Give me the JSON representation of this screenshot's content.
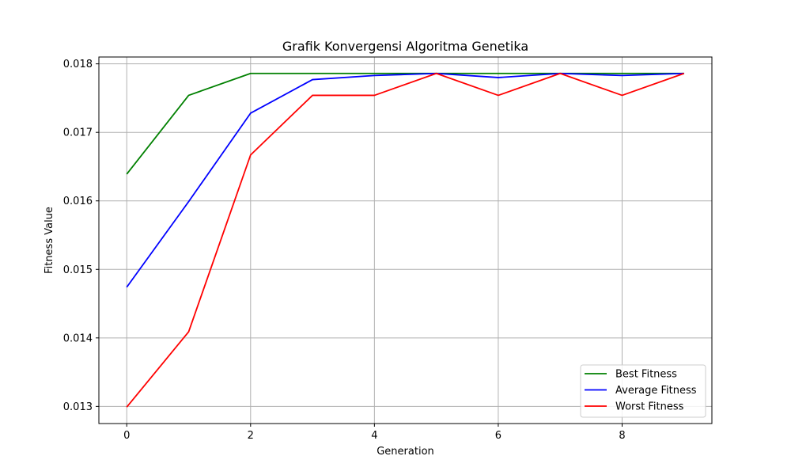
{
  "chart_data": {
    "type": "line",
    "title": "Grafik Konvergensi Algoritma Genetika",
    "xlabel": "Generation",
    "ylabel": "Fitness Value",
    "x": [
      0,
      1,
      2,
      3,
      4,
      5,
      6,
      7,
      8,
      9
    ],
    "xlim": [
      -0.45,
      9.45
    ],
    "ylim": [
      0.01275,
      0.0181
    ],
    "xticks": [
      0,
      2,
      4,
      6,
      8
    ],
    "yticks": [
      0.013,
      0.014,
      0.015,
      0.016,
      0.017,
      0.018
    ],
    "xtick_labels": [
      "0",
      "2",
      "4",
      "6",
      "8"
    ],
    "ytick_labels": [
      "0.013",
      "0.014",
      "0.015",
      "0.016",
      "0.017",
      "0.018"
    ],
    "grid": true,
    "legend_position": "lower-right",
    "series": [
      {
        "name": "Best Fitness",
        "color": "#008000",
        "values": [
          0.01639,
          0.01754,
          0.01786,
          0.01786,
          0.01786,
          0.01786,
          0.01786,
          0.01786,
          0.01786,
          0.01786
        ]
      },
      {
        "name": "Average Fitness",
        "color": "#0000ff",
        "values": [
          0.01474,
          0.01599,
          0.01728,
          0.01777,
          0.01783,
          0.01786,
          0.0178,
          0.01786,
          0.01783,
          0.01786
        ]
      },
      {
        "name": "Worst Fitness",
        "color": "#ff0000",
        "values": [
          0.01299,
          0.01409,
          0.01667,
          0.01754,
          0.01754,
          0.01786,
          0.01754,
          0.01786,
          0.01754,
          0.01786
        ]
      }
    ]
  }
}
